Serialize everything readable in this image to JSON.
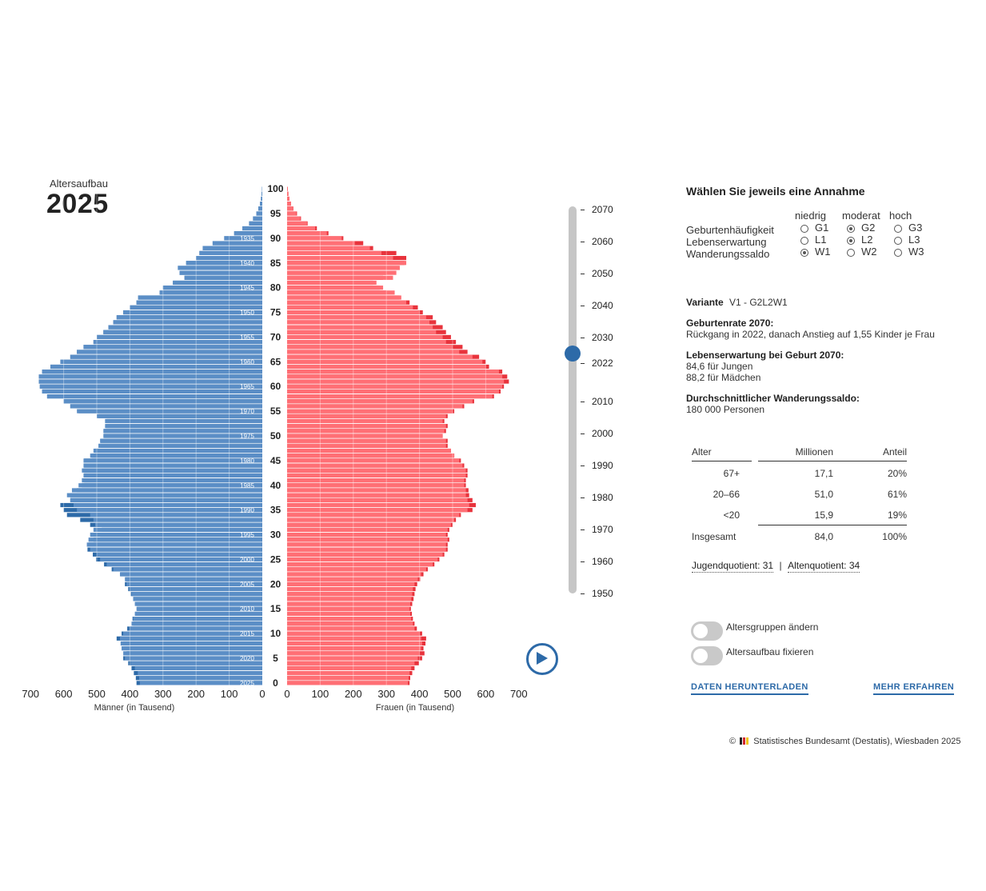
{
  "header": {
    "subtitle": "Altersaufbau",
    "year": "2025"
  },
  "chart_data": {
    "type": "bar",
    "orientation": "population-pyramid",
    "ages": [
      0,
      1,
      2,
      3,
      4,
      5,
      6,
      7,
      8,
      9,
      10,
      11,
      12,
      13,
      14,
      15,
      16,
      17,
      18,
      19,
      20,
      21,
      22,
      23,
      24,
      25,
      26,
      27,
      28,
      29,
      30,
      31,
      32,
      33,
      34,
      35,
      36,
      37,
      38,
      39,
      40,
      41,
      42,
      43,
      44,
      45,
      46,
      47,
      48,
      49,
      50,
      51,
      52,
      53,
      54,
      55,
      56,
      57,
      58,
      59,
      60,
      61,
      62,
      63,
      64,
      65,
      66,
      67,
      68,
      69,
      70,
      71,
      72,
      73,
      74,
      75,
      76,
      77,
      78,
      79,
      80,
      81,
      82,
      83,
      84,
      85,
      86,
      87,
      88,
      89,
      90,
      91,
      92,
      93,
      94,
      95,
      96,
      97,
      98,
      99,
      100
    ],
    "series": [
      {
        "name": "Männer (in Tausend)",
        "color": "#5b8ec6",
        "values": [
          370,
          372,
          376,
          385,
          398,
          415,
          420,
          425,
          428,
          430,
          420,
          400,
          395,
          390,
          385,
          380,
          385,
          390,
          395,
          400,
          410,
          415,
          430,
          450,
          470,
          490,
          500,
          520,
          530,
          525,
          520,
          510,
          505,
          510,
          520,
          560,
          570,
          580,
          590,
          575,
          555,
          545,
          540,
          545,
          540,
          540,
          520,
          510,
          495,
          490,
          480,
          480,
          475,
          475,
          500,
          560,
          580,
          600,
          650,
          665,
          672,
          675,
          675,
          665,
          640,
          610,
          580,
          560,
          540,
          510,
          500,
          480,
          465,
          450,
          440,
          420,
          400,
          380,
          375,
          310,
          300,
          270,
          235,
          250,
          255,
          230,
          200,
          190,
          180,
          150,
          115,
          85,
          60,
          40,
          28,
          18,
          12,
          7,
          4,
          2,
          1
        ],
        "dark_values": [
          380,
          382,
          388,
          395,
          405,
          420,
          410,
          400,
          420,
          440,
          425,
          408,
          390,
          392,
          383,
          378,
          380,
          390,
          397,
          405,
          415,
          412,
          428,
          455,
          478,
          502,
          512,
          528,
          525,
          510,
          490,
          485,
          520,
          550,
          590,
          600,
          610,
          580,
          580,
          560,
          545,
          538,
          538,
          540,
          538,
          538,
          515,
          505,
          490,
          488,
          478,
          478,
          472,
          470,
          495,
          555,
          580,
          600,
          650,
          665,
          672,
          675,
          675,
          665,
          640,
          610,
          580,
          560,
          540,
          510,
          500,
          480,
          465,
          450,
          440,
          420,
          400,
          380,
          375,
          310,
          300,
          270,
          235,
          250,
          255,
          230,
          200,
          190,
          180,
          150,
          115,
          85,
          60,
          40,
          28,
          18,
          12,
          7,
          4,
          2,
          1
        ]
      },
      {
        "name": "Frauen (in Tausend)",
        "color": "#ff6f75",
        "values": [
          365,
          367,
          370,
          375,
          385,
          395,
          400,
          405,
          408,
          405,
          400,
          385,
          380,
          375,
          372,
          370,
          372,
          375,
          378,
          380,
          385,
          395,
          405,
          420,
          440,
          455,
          470,
          480,
          480,
          485,
          480,
          485,
          495,
          505,
          520,
          545,
          550,
          545,
          540,
          540,
          535,
          535,
          540,
          540,
          530,
          520,
          505,
          495,
          480,
          480,
          470,
          475,
          480,
          470,
          480,
          500,
          530,
          560,
          620,
          640,
          650,
          655,
          650,
          640,
          600,
          590,
          560,
          520,
          500,
          480,
          470,
          450,
          440,
          430,
          420,
          400,
          380,
          360,
          345,
          325,
          290,
          270,
          320,
          330,
          340,
          360,
          320,
          285,
          250,
          205,
          165,
          120,
          85,
          60,
          40,
          28,
          18,
          12,
          7,
          4,
          2
        ],
        "dark_values": [
          370,
          372,
          378,
          385,
          398,
          408,
          415,
          412,
          418,
          420,
          408,
          392,
          385,
          380,
          377,
          374,
          378,
          382,
          385,
          388,
          393,
          402,
          412,
          425,
          445,
          460,
          475,
          485,
          485,
          490,
          485,
          490,
          500,
          510,
          525,
          560,
          570,
          560,
          550,
          548,
          540,
          540,
          545,
          545,
          535,
          525,
          505,
          495,
          485,
          485,
          470,
          480,
          485,
          475,
          485,
          505,
          535,
          565,
          625,
          645,
          655,
          670,
          665,
          650,
          610,
          600,
          580,
          545,
          530,
          510,
          495,
          480,
          470,
          450,
          440,
          410,
          395,
          370,
          340,
          300,
          280,
          260,
          290,
          300,
          340,
          355,
          360,
          330,
          260,
          230,
          170,
          125,
          90,
          62,
          42,
          30,
          19,
          12,
          7,
          4,
          2
        ]
      }
    ],
    "birth_year_labels": [
      "1935",
      "1940",
      "1945",
      "1950",
      "1955",
      "1960",
      "1965",
      "1970",
      "1975",
      "1980",
      "1985",
      "1990",
      "1995",
      "2000",
      "2005",
      "2010",
      "2015",
      "2020",
      "2025"
    ],
    "age_tick_labels": [
      "100",
      "95",
      "90",
      "85",
      "80",
      "75",
      "70",
      "65",
      "60",
      "55",
      "50",
      "45",
      "40",
      "35",
      "30",
      "25",
      "20",
      "15",
      "10",
      "5",
      "0"
    ],
    "x_tick_labels_left": [
      "700",
      "600",
      "500",
      "400",
      "300",
      "200",
      "100",
      "0"
    ],
    "x_tick_labels_right": [
      "0",
      "100",
      "200",
      "300",
      "400",
      "500",
      "600",
      "700"
    ],
    "xlabel_left": "Männer (in Tausend)",
    "xlabel_right": "Frauen (in Tausend)",
    "xlim": [
      0,
      700
    ],
    "ylim": [
      0,
      100
    ]
  },
  "slider": {
    "ticks": [
      "2070",
      "2060",
      "2050",
      "2040",
      "2030",
      "2022",
      "2010",
      "2000",
      "1990",
      "1980",
      "1970",
      "1960",
      "1950"
    ],
    "selected": "2025"
  },
  "panel": {
    "heading": "Wählen Sie jeweils eine Annahme",
    "col_labels": [
      "niedrig",
      "moderat",
      "hoch"
    ],
    "rows": [
      {
        "label": "Geburtenhäufigkeit",
        "options": [
          "G1",
          "G2",
          "G3"
        ],
        "selected": "G2"
      },
      {
        "label": "Lebenserwartung",
        "options": [
          "L1",
          "L2",
          "L3"
        ],
        "selected": "L2"
      },
      {
        "label": "Wanderungssaldo",
        "options": [
          "W1",
          "W2",
          "W3"
        ],
        "selected": "W1"
      }
    ],
    "variant_label": "Variante",
    "variant_value": "V1 - G2L2W1",
    "info": [
      {
        "title": "Geburtenrate 2070:",
        "lines": [
          "Rückgang in 2022, danach Anstieg auf 1,55 Kinder je Frau"
        ]
      },
      {
        "title": "Lebenserwartung bei Geburt 2070:",
        "lines": [
          "84,6 für Jungen",
          "88,2 für Mädchen"
        ]
      },
      {
        "title": "Durchschnittlicher Wanderungssaldo:",
        "lines": [
          "180 000 Personen"
        ]
      }
    ]
  },
  "table": {
    "headers": [
      "Alter",
      "Millionen",
      "Anteil"
    ],
    "rows": [
      [
        "67+",
        "17,1",
        "20%"
      ],
      [
        "20–66",
        "51,0",
        "61%"
      ],
      [
        "<20",
        "15,9",
        "19%"
      ]
    ],
    "total": [
      "Insgesamt",
      "84,0",
      "100%"
    ]
  },
  "quotients": {
    "young": "Jugendquotient: 31",
    "separator": "|",
    "old": "Altenquotient: 34"
  },
  "toggles": {
    "groups": "Altersgruppen ändern",
    "fix": "Altersaufbau fixieren"
  },
  "links": {
    "download": "DATEN HERUNTERLADEN",
    "more": "MEHR ERFAHREN"
  },
  "footer": {
    "copyright_prefix": "©",
    "copyright": "Statistisches Bundesamt (Destatis), Wiesbaden 2025"
  },
  "colors": {
    "male": "#5b8ec6",
    "male_dark": "#2d6aa8",
    "female": "#ff6f75",
    "female_dark": "#e8333c",
    "accent": "#2d6aa8"
  }
}
